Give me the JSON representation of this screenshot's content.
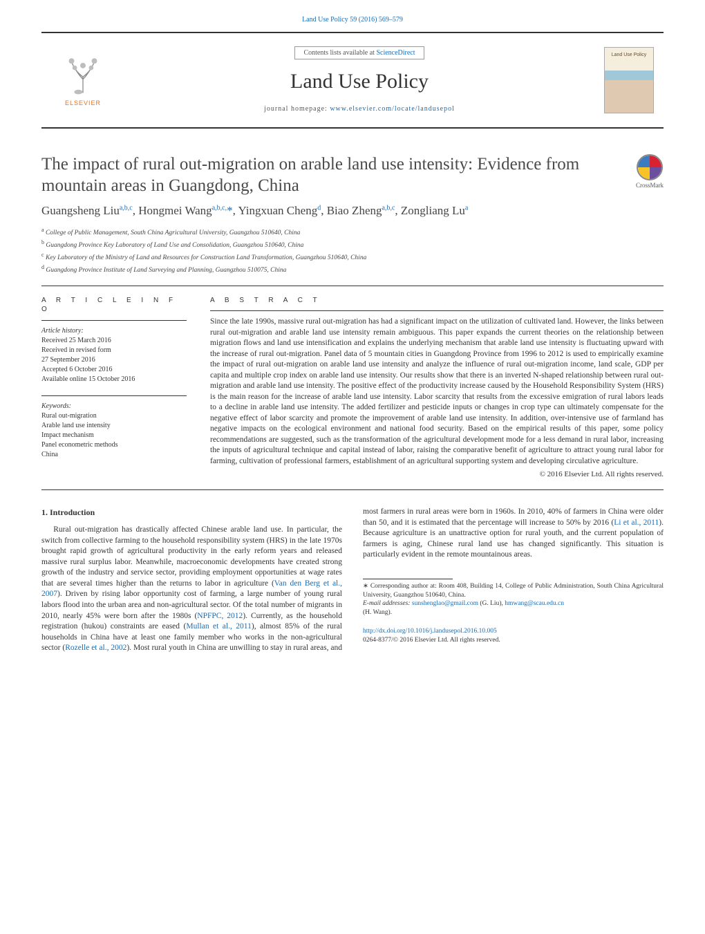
{
  "colors": {
    "link": "#1a6ab0",
    "text": "#333333",
    "accent_orange": "#e9711c",
    "rule": "#333333",
    "background": "#ffffff"
  },
  "header": {
    "citation_journal": "Land Use Policy 59 (2016) 569–579",
    "contents_prefix": "Contents lists available at ",
    "contents_link": "ScienceDirect",
    "journal_title": "Land Use Policy",
    "homepage_prefix": "journal homepage: ",
    "homepage_link": "www.elsevier.com/locate/landusepol",
    "publisher_label": "ELSEVIER",
    "cover_label": "Land Use Policy"
  },
  "crossmark": {
    "label": "CrossMark"
  },
  "article": {
    "title": "The impact of rural out-migration on arable land use intensity: Evidence from mountain areas in Guangdong, China",
    "authors_html": "Guangsheng Liu<sup>a,b,c</sup>, Hongmei Wang<sup>a,b,c,</sup><span class='star'>*</span>, Yingxuan Cheng<sup>d</sup>, Biao Zheng<sup>a,b,c</sup>, Zongliang Lu<sup>a</sup>",
    "affiliations": [
      {
        "key": "a",
        "text": "College of Public Management, South China Agricultural University, Guangzhou 510640, China"
      },
      {
        "key": "b",
        "text": "Guangdong Province Key Laboratory of Land Use and Consolidation, Guangzhou 510640, China"
      },
      {
        "key": "c",
        "text": "Key Laboratory of the Ministry of Land and Resources for Construction Land Transformation, Guangzhou 510640, China"
      },
      {
        "key": "d",
        "text": "Guangdong Province Institute of Land Surveying and Planning, Guangzhou 510075, China"
      }
    ]
  },
  "article_info": {
    "heading": "A R T I C L E   I N F O",
    "history_label": "Article history:",
    "history": [
      "Received 25 March 2016",
      "Received in revised form",
      "27 September 2016",
      "Accepted 6 October 2016",
      "Available online 15 October 2016"
    ],
    "keywords_label": "Keywords:",
    "keywords": [
      "Rural out-migration",
      "Arable land use intensity",
      "Impact mechanism",
      "Panel econometric methods",
      "China"
    ]
  },
  "abstract": {
    "heading": "A B S T R A C T",
    "text": "Since the late 1990s, massive rural out-migration has had a significant impact on the utilization of cultivated land. However, the links between rural out-migration and arable land use intensity remain ambiguous. This paper expands the current theories on the relationship between migration flows and land use intensification and explains the underlying mechanism that arable land use intensity is fluctuating upward with the increase of rural out-migration. Panel data of 5 mountain cities in Guangdong Province from 1996 to 2012 is used to empirically examine the impact of rural out-migration on arable land use intensity and analyze the influence of rural out-migration income, land scale, GDP per capita and multiple crop index on arable land use intensity. Our results show that there is an inverted N-shaped relationship between rural out-migration and arable land use intensity. The positive effect of the productivity increase caused by the Household Responsibility System (HRS) is the main reason for the increase of arable land use intensity. Labor scarcity that results from the excessive emigration of rural labors leads to a decline in arable land use intensity. The added fertilizer and pesticide inputs or changes in crop type can ultimately compensate for the negative effect of labor scarcity and promote the improvement of arable land use intensity. In addition, over-intensive use of farmland has negative impacts on the ecological environment and national food security. Based on the empirical results of this paper, some policy recommendations are suggested, such as the transformation of the agricultural development mode for a less demand in rural labor, increasing the inputs of agricultural technique and capital instead of labor, raising the comparative benefit of agriculture to attract young rural labor for farming, cultivation of professional farmers, establishment of an agricultural supporting system and developing circulative agriculture.",
    "copyright": "© 2016 Elsevier Ltd. All rights reserved."
  },
  "intro": {
    "heading": "1.  Introduction",
    "p1_a": "Rural out-migration has drastically affected Chinese arable land use. In particular, the switch from collective farming to the household responsibility system (HRS) in the late 1970s brought rapid growth of agricultural productivity in the early reform years and released massive rural surplus labor. Meanwhile, macroeconomic developments have created strong growth of the industry and service sector, providing employment opportunities at wage rates that are several times higher than the returns to labor in agriculture (",
    "ref1": "Van den Berg et al., 2007",
    "p1_b": "). Driven by rising labor opportunity cost of farming, a large number of young rural labors flood into the urban area and non-agricultural sector. Of the total number of migrants in 2010, nearly 45% were born after the 1980s (",
    "ref2": "NPFPC, 2012",
    "p1_c": "). Currently, as the household registration (hukou) constraints are eased (",
    "ref3": "Mullan et al., 2011",
    "p1_d": "), almost 85% of the rural households in China have at least one family member who works in the non-agricultural sector (",
    "ref4": "Rozelle et al., 2002",
    "p1_e": "). Most rural youth in China are unwilling to stay in rural areas, and most farmers in rural areas were born in 1960s. In 2010, 40% of farmers in China were older than 50, and it is estimated that the percentage will increase to 50% by 2016 (",
    "ref5": "Li et al., 2011",
    "p1_f": "). Because agriculture is an unattractive option for rural youth, and the current population of farmers is aging, Chinese rural land use has changed significantly. This situation is particularly evident in the remote mountainous areas."
  },
  "footnotes": {
    "corr_label": "∗ Corresponding author at: Room 408, Building 14, College of Public Administration, South China Agricultural University, Guangzhou 510640, China.",
    "email_label": "E-mail addresses: ",
    "email1": "sunshenglao@gmail.com",
    "email1_whom": " (G. Liu), ",
    "email2": "hmwang@scau.edu.cn",
    "email2_whom": "(H. Wang)."
  },
  "doi": {
    "url": "http://dx.doi.org/10.1016/j.landusepol.2016.10.005",
    "issn_line": "0264-8377/© 2016 Elsevier Ltd. All rights reserved."
  }
}
